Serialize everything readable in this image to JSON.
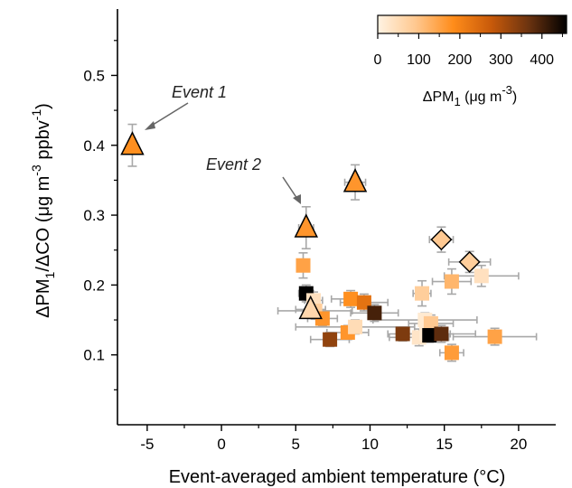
{
  "chart_data": {
    "type": "scatter",
    "title": "",
    "xlabel": "Event-averaged ambient temperature (°C)",
    "ylabel": "ΔPM₁/ΔCO (μg m⁻³ ppbv⁻¹)",
    "ylabel_parts": {
      "prefix": "ΔPM",
      "sub": "1",
      "mid": "/ΔCO (μg m",
      "sup1": "-3",
      "mid2": " ppbv",
      "sup2": "-1",
      "suffix": ")"
    },
    "xlim": [
      -7,
      22.5
    ],
    "ylim": [
      0,
      0.595
    ],
    "x_ticks": [
      -5,
      0,
      5,
      10,
      15,
      20
    ],
    "x_tick_labels": [
      "-5",
      "0",
      "5",
      "10",
      "15",
      "20"
    ],
    "y_ticks": [
      0.1,
      0.2,
      0.3,
      0.4,
      0.5
    ],
    "y_tick_labels": [
      "0.1",
      "0.2",
      "0.3",
      "0.4",
      "0.5"
    ],
    "grid": false,
    "colorbar": {
      "label": "ΔPM₁ (μg m⁻³)",
      "label_parts": {
        "prefix": "ΔPM",
        "sub": "1",
        "mid": " (μg m",
        "sup": "-3",
        "suffix": ")"
      },
      "range": [
        0,
        460
      ],
      "ticks": [
        0,
        100,
        200,
        300,
        400
      ],
      "tick_labels": [
        "0",
        "100",
        "200",
        "300",
        "400"
      ],
      "placement": "top-right",
      "colors": [
        "#fff3e3",
        "#ffc890",
        "#ff8c1a",
        "#c85a0a",
        "#6b3310",
        "#000000"
      ]
    },
    "annotations": [
      {
        "text": "Event 1",
        "x": -6,
        "y": 0.4
      },
      {
        "text": "Event 2",
        "x": 5.7,
        "y": 0.28
      }
    ],
    "series": [
      {
        "marker": "triangle",
        "points": [
          {
            "x": -6.0,
            "y": 0.4,
            "c": 180,
            "yerr": 0.03,
            "xerr": 0
          },
          {
            "x": 5.7,
            "y": 0.282,
            "c": 170,
            "yerr": 0.03,
            "xerr": 0.5
          },
          {
            "x": 9.0,
            "y": 0.347,
            "c": 170,
            "yerr": 0.025,
            "xerr": 0.7
          },
          {
            "x": 6.0,
            "y": 0.165,
            "c": 60,
            "yerr": 0,
            "xerr": 1.0
          }
        ]
      },
      {
        "marker": "diamond",
        "points": [
          {
            "x": 14.8,
            "y": 0.265,
            "c": 90,
            "yerr": 0.018,
            "xerr": 0.8
          },
          {
            "x": 16.7,
            "y": 0.233,
            "c": 80,
            "yerr": 0.015,
            "xerr": 1.4
          }
        ]
      },
      {
        "marker": "square",
        "points": [
          {
            "x": 5.5,
            "y": 0.228,
            "c": 150,
            "yerr": 0.018,
            "xerr": 0.4
          },
          {
            "x": 5.7,
            "y": 0.188,
            "c": 460,
            "yerr": 0.012,
            "xerr": 0.5
          },
          {
            "x": 6.2,
            "y": 0.178,
            "c": 40,
            "yerr": 0.012,
            "xerr": 0.6
          },
          {
            "x": 6.3,
            "y": 0.163,
            "c": 80,
            "yerr": 0.012,
            "xerr": 2.5
          },
          {
            "x": 6.8,
            "y": 0.152,
            "c": 170,
            "yerr": 0.01,
            "xerr": 1.0
          },
          {
            "x": 7.3,
            "y": 0.122,
            "c": 330,
            "yerr": 0.01,
            "xerr": 1.3
          },
          {
            "x": 8.5,
            "y": 0.132,
            "c": 170,
            "yerr": 0.01,
            "xerr": 1.4
          },
          {
            "x": 8.7,
            "y": 0.18,
            "c": 180,
            "yerr": 0.012,
            "xerr": 1.3
          },
          {
            "x": 9.0,
            "y": 0.14,
            "c": 50,
            "yerr": 0.01,
            "xerr": 4.0
          },
          {
            "x": 9.6,
            "y": 0.175,
            "c": 230,
            "yerr": 0.012,
            "xerr": 1.6
          },
          {
            "x": 10.3,
            "y": 0.16,
            "c": 400,
            "yerr": 0.012,
            "xerr": 1.6
          },
          {
            "x": 12.2,
            "y": 0.13,
            "c": 350,
            "yerr": 0.01,
            "xerr": 1.0
          },
          {
            "x": 13.3,
            "y": 0.125,
            "c": 30,
            "yerr": 0.012,
            "xerr": 2.0
          },
          {
            "x": 13.5,
            "y": 0.188,
            "c": 80,
            "yerr": 0.018,
            "xerr": 0.6
          },
          {
            "x": 13.7,
            "y": 0.15,
            "c": 20,
            "yerr": 0.01,
            "xerr": 3.5
          },
          {
            "x": 13.8,
            "y": 0.13,
            "c": 20,
            "yerr": 0.01,
            "xerr": 1.6
          },
          {
            "x": 14.1,
            "y": 0.145,
            "c": 90,
            "yerr": 0.012,
            "xerr": 1.5
          },
          {
            "x": 14.0,
            "y": 0.128,
            "c": 460,
            "yerr": 0.01,
            "xerr": 0.8
          },
          {
            "x": 14.8,
            "y": 0.13,
            "c": 380,
            "yerr": 0.012,
            "xerr": 2.3
          },
          {
            "x": 15.5,
            "y": 0.205,
            "c": 120,
            "yerr": 0.018,
            "xerr": 1.3
          },
          {
            "x": 15.5,
            "y": 0.103,
            "c": 160,
            "yerr": 0.012,
            "xerr": 0.8
          },
          {
            "x": 17.5,
            "y": 0.213,
            "c": 40,
            "yerr": 0.015,
            "xerr": 2.5
          },
          {
            "x": 18.4,
            "y": 0.126,
            "c": 150,
            "yerr": 0.012,
            "xerr": 2.8
          }
        ]
      }
    ]
  }
}
